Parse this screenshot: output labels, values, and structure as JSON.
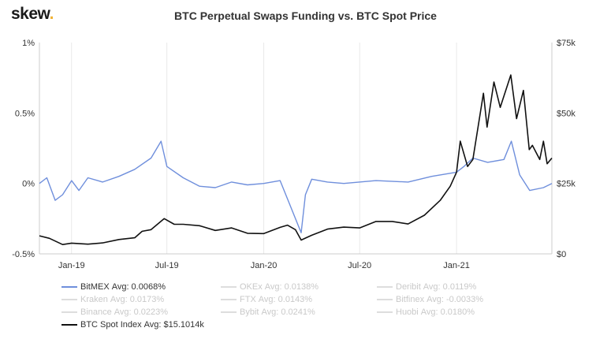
{
  "brand": {
    "name": "skew",
    "dot": "."
  },
  "chart_data": {
    "type": "line",
    "title": "BTC Perpetual Swaps Funding vs. BTC Spot Price",
    "x_range": [
      "2018-11-01",
      "2021-07-01"
    ],
    "x_ticks": [
      {
        "label": "Jan-19",
        "date": "2019-01-01"
      },
      {
        "label": "Jul-19",
        "date": "2019-07-01"
      },
      {
        "label": "Jan-20",
        "date": "2020-01-01"
      },
      {
        "label": "Jul-20",
        "date": "2020-07-01"
      },
      {
        "label": "Jan-21",
        "date": "2021-01-01"
      }
    ],
    "y_left": {
      "ticks": [
        "1%",
        "0.5%",
        "0%",
        "-0.5%"
      ],
      "values": [
        1,
        0.5,
        0,
        -0.5
      ],
      "range": [
        -0.5,
        1
      ],
      "unit": "%"
    },
    "y_right": {
      "ticks": [
        "$75k",
        "$50k",
        "$25k",
        "$0"
      ],
      "values": [
        75000,
        50000,
        25000,
        0
      ],
      "range": [
        0,
        75000
      ]
    },
    "grid": "vertical",
    "legend_position": "bottom",
    "series": [
      {
        "name": "BitMEX",
        "axis": "left",
        "color": "#6f8fdc",
        "points": [
          [
            "2018-11-01",
            0.0
          ],
          [
            "2018-11-15",
            0.04
          ],
          [
            "2018-12-01",
            -0.12
          ],
          [
            "2018-12-15",
            -0.08
          ],
          [
            "2019-01-01",
            0.02
          ],
          [
            "2019-01-15",
            -0.05
          ],
          [
            "2019-02-01",
            0.04
          ],
          [
            "2019-03-01",
            0.01
          ],
          [
            "2019-04-01",
            0.05
          ],
          [
            "2019-05-01",
            0.1
          ],
          [
            "2019-06-01",
            0.18
          ],
          [
            "2019-06-20",
            0.3
          ],
          [
            "2019-07-01",
            0.12
          ],
          [
            "2019-08-01",
            0.04
          ],
          [
            "2019-09-01",
            -0.02
          ],
          [
            "2019-10-01",
            -0.03
          ],
          [
            "2019-11-01",
            0.01
          ],
          [
            "2019-12-01",
            -0.01
          ],
          [
            "2020-01-01",
            0.0
          ],
          [
            "2020-02-01",
            0.02
          ],
          [
            "2020-03-12",
            -0.35
          ],
          [
            "2020-03-20",
            -0.08
          ],
          [
            "2020-04-01",
            0.03
          ],
          [
            "2020-05-01",
            0.01
          ],
          [
            "2020-06-01",
            0.0
          ],
          [
            "2020-08-01",
            0.02
          ],
          [
            "2020-10-01",
            0.01
          ],
          [
            "2020-11-15",
            0.05
          ],
          [
            "2021-01-01",
            0.08
          ],
          [
            "2021-01-15",
            0.12
          ],
          [
            "2021-02-01",
            0.18
          ],
          [
            "2021-03-01",
            0.15
          ],
          [
            "2021-04-01",
            0.17
          ],
          [
            "2021-04-15",
            0.3
          ],
          [
            "2021-05-01",
            0.06
          ],
          [
            "2021-05-20",
            -0.05
          ],
          [
            "2021-06-15",
            -0.03
          ],
          [
            "2021-07-01",
            0.0
          ]
        ]
      },
      {
        "name": "BTC Spot Index",
        "axis": "right",
        "color": "#111111",
        "points": [
          [
            "2018-11-01",
            6400
          ],
          [
            "2018-11-20",
            5500
          ],
          [
            "2018-12-15",
            3300
          ],
          [
            "2019-01-01",
            3800
          ],
          [
            "2019-02-01",
            3450
          ],
          [
            "2019-03-01",
            3900
          ],
          [
            "2019-04-01",
            5100
          ],
          [
            "2019-05-01",
            5700
          ],
          [
            "2019-05-15",
            8000
          ],
          [
            "2019-06-01",
            8600
          ],
          [
            "2019-06-26",
            12500
          ],
          [
            "2019-07-15",
            10500
          ],
          [
            "2019-08-01",
            10500
          ],
          [
            "2019-09-01",
            10000
          ],
          [
            "2019-10-01",
            8300
          ],
          [
            "2019-11-01",
            9200
          ],
          [
            "2019-12-01",
            7300
          ],
          [
            "2020-01-01",
            7200
          ],
          [
            "2020-02-01",
            9400
          ],
          [
            "2020-02-15",
            10200
          ],
          [
            "2020-03-01",
            8600
          ],
          [
            "2020-03-12",
            4900
          ],
          [
            "2020-04-01",
            6600
          ],
          [
            "2020-05-01",
            8800
          ],
          [
            "2020-06-01",
            9500
          ],
          [
            "2020-07-01",
            9200
          ],
          [
            "2020-08-01",
            11500
          ],
          [
            "2020-09-01",
            11500
          ],
          [
            "2020-10-01",
            10600
          ],
          [
            "2020-11-01",
            13700
          ],
          [
            "2020-12-01",
            19000
          ],
          [
            "2020-12-20",
            24000
          ],
          [
            "2021-01-01",
            29000
          ],
          [
            "2021-01-08",
            40000
          ],
          [
            "2021-01-22",
            31000
          ],
          [
            "2021-02-01",
            33500
          ],
          [
            "2021-02-21",
            57000
          ],
          [
            "2021-02-28",
            45000
          ],
          [
            "2021-03-13",
            61000
          ],
          [
            "2021-03-25",
            52000
          ],
          [
            "2021-04-14",
            63500
          ],
          [
            "2021-04-25",
            48000
          ],
          [
            "2021-05-08",
            58000
          ],
          [
            "2021-05-19",
            37000
          ],
          [
            "2021-05-25",
            38500
          ],
          [
            "2021-06-08",
            33500
          ],
          [
            "2021-06-15",
            40000
          ],
          [
            "2021-06-22",
            32000
          ],
          [
            "2021-07-01",
            34000
          ]
        ]
      }
    ]
  },
  "legend": [
    {
      "name": "BitMEX",
      "stat": "Avg: 0.0068%",
      "active": true,
      "color": "#6f8fdc"
    },
    {
      "name": "OKEx",
      "stat": "Avg: 0.0138%",
      "active": false
    },
    {
      "name": "Deribit",
      "stat": "Avg: 0.0119%",
      "active": false
    },
    {
      "name": "Kraken",
      "stat": "Avg: 0.0173%",
      "active": false
    },
    {
      "name": "FTX",
      "stat": "Avg: 0.0143%",
      "active": false
    },
    {
      "name": "Bitfinex",
      "stat": "Avg: -0.0033%",
      "active": false
    },
    {
      "name": "Binance",
      "stat": "Avg: 0.0223%",
      "active": false
    },
    {
      "name": "Bybit",
      "stat": "Avg: 0.0241%",
      "active": false
    },
    {
      "name": "Huobi",
      "stat": "Avg: 0.0180%",
      "active": false
    },
    {
      "name": "BTC Spot Index",
      "stat": "Avg: $15.1014k",
      "active": true,
      "color": "#111111"
    }
  ]
}
